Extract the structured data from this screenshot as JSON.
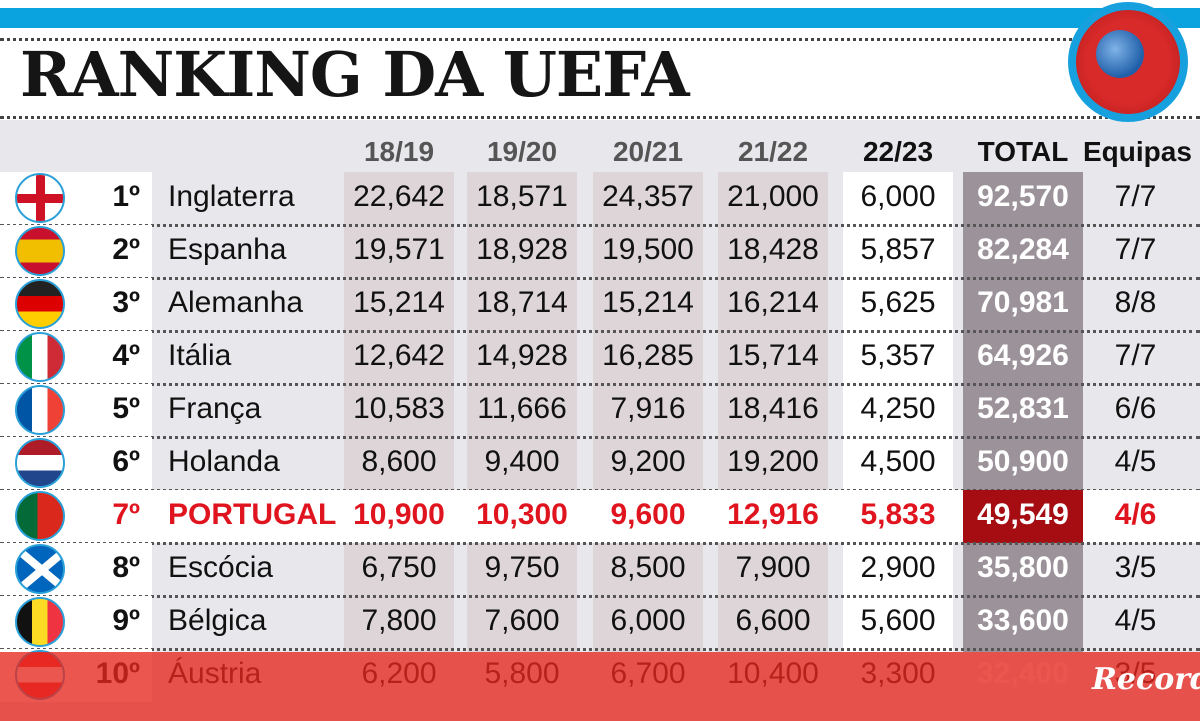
{
  "header": {
    "title": "RANKING DA UEFA",
    "logo": "uefa-logo"
  },
  "chart_data": {
    "type": "table",
    "title": "RANKING DA UEFA",
    "columns": [
      "",
      "",
      "",
      "18/19",
      "19/20",
      "20/21",
      "21/22",
      "22/23",
      "TOTAL",
      "Equipas"
    ],
    "rows": [
      {
        "flag": "england-flag",
        "rank": "1º",
        "country": "Inglaterra",
        "s1819": "22,642",
        "s1920": "18,571",
        "s2021": "24,357",
        "s2122": "21,000",
        "s2223": "6,000",
        "total": "92,570",
        "equipas": "7/7"
      },
      {
        "flag": "spain-flag",
        "rank": "2º",
        "country": "Espanha",
        "s1819": "19,571",
        "s1920": "18,928",
        "s2021": "19,500",
        "s2122": "18,428",
        "s2223": "5,857",
        "total": "82,284",
        "equipas": "7/7"
      },
      {
        "flag": "germany-flag",
        "rank": "3º",
        "country": "Alemanha",
        "s1819": "15,214",
        "s1920": "18,714",
        "s2021": "15,214",
        "s2122": "16,214",
        "s2223": "5,625",
        "total": "70,981",
        "equipas": "8/8"
      },
      {
        "flag": "italy-flag",
        "rank": "4º",
        "country": "Itália",
        "s1819": "12,642",
        "s1920": "14,928",
        "s2021": "16,285",
        "s2122": "15,714",
        "s2223": "5,357",
        "total": "64,926",
        "equipas": "7/7"
      },
      {
        "flag": "france-flag",
        "rank": "5º",
        "country": "França",
        "s1819": "10,583",
        "s1920": "11,666",
        "s2021": "7,916",
        "s2122": "18,416",
        "s2223": "4,250",
        "total": "52,831",
        "equipas": "6/6"
      },
      {
        "flag": "netherlands-flag",
        "rank": "6º",
        "country": "Holanda",
        "s1819": "8,600",
        "s1920": "9,400",
        "s2021": "9,200",
        "s2122": "19,200",
        "s2223": "4,500",
        "total": "50,900",
        "equipas": "4/5"
      },
      {
        "flag": "portugal-flag",
        "rank": "7º",
        "country": "PORTUGAL",
        "s1819": "10,900",
        "s1920": "10,300",
        "s2021": "9,600",
        "s2122": "12,916",
        "s2223": "5,833",
        "total": "49,549",
        "equipas": "4/6",
        "highlight": true
      },
      {
        "flag": "scotland-flag",
        "rank": "8º",
        "country": "Escócia",
        "s1819": "6,750",
        "s1920": "9,750",
        "s2021": "8,500",
        "s2122": "7,900",
        "s2223": "2,900",
        "total": "35,800",
        "equipas": "3/5"
      },
      {
        "flag": "belgium-flag",
        "rank": "9º",
        "country": "Bélgica",
        "s1819": "7,800",
        "s1920": "7,600",
        "s2021": "6,000",
        "s2122": "6,600",
        "s2223": "5,600",
        "total": "33,600",
        "equipas": "4/5"
      },
      {
        "flag": "austria-flag",
        "rank": "10º",
        "country": "Áustria",
        "s1819": "6,200",
        "s1920": "5,800",
        "s2021": "6,700",
        "s2122": "10,400",
        "s2223": "3,300",
        "total": "32,400",
        "equipas": "3/5"
      }
    ]
  },
  "colors": {
    "accent_blue": "#0aa3df",
    "highlight_red": "#e0141e",
    "total_dark_red": "#a50d12",
    "total_gray": "#9b9399"
  },
  "watermark": "Record"
}
